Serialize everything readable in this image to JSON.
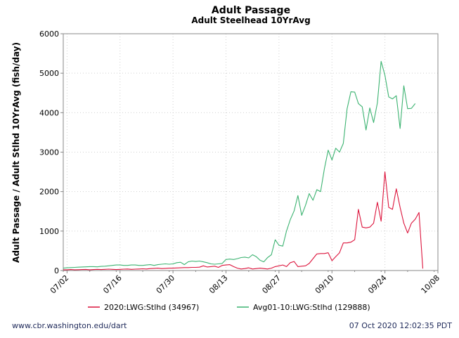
{
  "chart_data": {
    "type": "line",
    "title": "Adult Passage",
    "subtitle": "Adult Steelhead 10YrAvg",
    "ylabel": "Adult Passage / Adult Stlhd 10YrAvg (fish/day)",
    "xlabel": "",
    "ylim": [
      0,
      6000
    ],
    "yticks": [
      0,
      1000,
      2000,
      3000,
      4000,
      5000,
      6000
    ],
    "x_start": "07/01",
    "x_end": "10/08",
    "xtick_labels": [
      "07/02",
      "07/16",
      "07/30",
      "08/13",
      "08/27",
      "09/10",
      "09/24",
      "10/08"
    ],
    "grid": true,
    "legend_position": "bottom",
    "series": [
      {
        "name": "2020:LWG:Stlhd (34967)",
        "color": "#dc143c",
        "values": [
          20,
          20,
          25,
          20,
          22,
          25,
          28,
          20,
          25,
          30,
          25,
          30,
          35,
          30,
          25,
          30,
          35,
          40,
          30,
          35,
          40,
          45,
          40,
          50,
          55,
          60,
          50,
          55,
          60,
          60,
          65,
          70,
          75,
          75,
          80,
          80,
          85,
          120,
          90,
          100,
          110,
          80,
          130,
          140,
          150,
          100,
          60,
          40,
          50,
          70,
          40,
          50,
          60,
          50,
          40,
          60,
          100,
          120,
          140,
          100,
          200,
          230,
          100,
          110,
          120,
          180,
          300,
          420,
          430,
          430,
          450,
          250,
          350,
          450,
          700,
          700,
          720,
          780,
          1550,
          1100,
          1080,
          1100,
          1200,
          1730,
          1250,
          2500,
          1600,
          1550,
          2070,
          1600,
          1200,
          950,
          1200,
          1300,
          1470,
          50
        ]
      },
      {
        "name": "Avg01-10:LWG:Stlhd (129888)",
        "color": "#3cb371",
        "values": [
          60,
          70,
          75,
          80,
          85,
          90,
          95,
          100,
          100,
          95,
          105,
          110,
          120,
          130,
          140,
          140,
          130,
          130,
          140,
          140,
          130,
          130,
          140,
          150,
          130,
          150,
          160,
          170,
          160,
          170,
          200,
          210,
          150,
          220,
          240,
          230,
          240,
          220,
          200,
          170,
          160,
          170,
          180,
          280,
          290,
          280,
          300,
          330,
          340,
          320,
          400,
          350,
          260,
          220,
          330,
          400,
          780,
          640,
          620,
          1000,
          1290,
          1510,
          1900,
          1400,
          1650,
          1950,
          1780,
          2050,
          2000,
          2580,
          3050,
          2800,
          3100,
          3000,
          3220,
          4100,
          4530,
          4520,
          4230,
          4150,
          3560,
          4120,
          3750,
          4250,
          5300,
          4950,
          4400,
          4350,
          4430,
          3600,
          4680,
          4100,
          4110,
          4230
        ]
      }
    ]
  },
  "footer": {
    "source": "www.cbr.washington.edu/dart",
    "timestamp": "07 Oct 2020 12:02:35 PDT"
  }
}
